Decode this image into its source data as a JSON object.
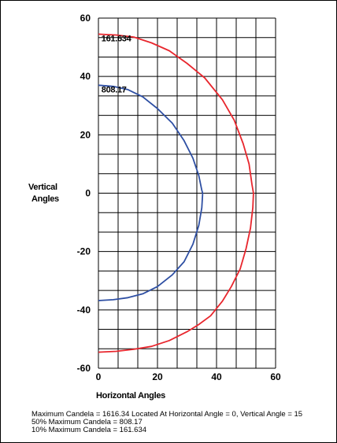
{
  "chart_data": {
    "type": "line",
    "xlabel": "Horizontal Angles",
    "ylabel": [
      "Vertical",
      "Angles"
    ],
    "xlim": [
      0,
      60
    ],
    "ylim": [
      -60,
      60
    ],
    "x_ticks": [
      "0",
      "20",
      "40",
      "60"
    ],
    "y_ticks": [
      "60",
      "40",
      "20",
      "0",
      "-20",
      "-40",
      "-60"
    ],
    "grid": true,
    "series": [
      {
        "name": "161.634",
        "color": "#e8262d",
        "points": [
          [
            0,
            54.5
          ],
          [
            6,
            54.2
          ],
          [
            12,
            53.5
          ],
          [
            18,
            51.5
          ],
          [
            24,
            48.8
          ],
          [
            30,
            44.5
          ],
          [
            36,
            39.5
          ],
          [
            42,
            32
          ],
          [
            46,
            25
          ],
          [
            49,
            17
          ],
          [
            51,
            10
          ],
          [
            52,
            3
          ],
          [
            52.5,
            0
          ],
          [
            52.3,
            -5
          ],
          [
            51.5,
            -12
          ],
          [
            50,
            -19
          ],
          [
            48,
            -26
          ],
          [
            45,
            -32
          ],
          [
            42,
            -37
          ],
          [
            38,
            -42
          ],
          [
            34,
            -45
          ],
          [
            30,
            -47.5
          ],
          [
            24,
            -50.5
          ],
          [
            18,
            -52.5
          ],
          [
            12,
            -53.5
          ],
          [
            6,
            -54.2
          ],
          [
            0,
            -54.5
          ]
        ],
        "label_pos": [
          1,
          52
        ]
      },
      {
        "name": "808.17",
        "color": "#2e4fa3",
        "points": [
          [
            0,
            37
          ],
          [
            5,
            36.6
          ],
          [
            10,
            35.5
          ],
          [
            15,
            33
          ],
          [
            20,
            29
          ],
          [
            25,
            24
          ],
          [
            29,
            18
          ],
          [
            32,
            12
          ],
          [
            34,
            6
          ],
          [
            35,
            1
          ],
          [
            35.3,
            0
          ],
          [
            35,
            -5
          ],
          [
            34,
            -11
          ],
          [
            32,
            -17.5
          ],
          [
            29,
            -23.5
          ],
          [
            25,
            -28
          ],
          [
            20,
            -32
          ],
          [
            15,
            -34.5
          ],
          [
            10,
            -35.8
          ],
          [
            5,
            -36.5
          ],
          [
            0,
            -36.8
          ]
        ],
        "label_pos": [
          1,
          34.5
        ]
      }
    ]
  },
  "footer": {
    "line1": "Maximum Candela = 1616.34   Located At Horizontal Angle = 0, Vertical Angle = 15",
    "line2": "50% Maximum Candela = 808.17",
    "line3": "10% Maximum Candela = 161.634"
  }
}
